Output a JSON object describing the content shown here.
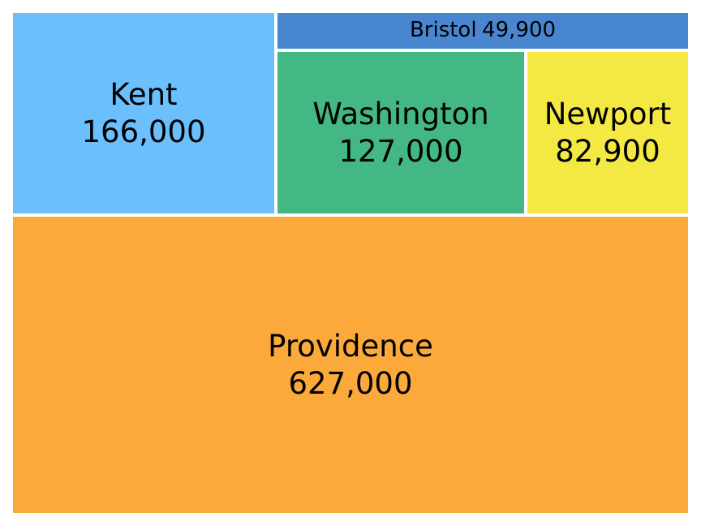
{
  "chart_data": {
    "type": "treemap",
    "title": "",
    "items": [
      {
        "label": "Providence",
        "value": 627000,
        "value_text": "627,000",
        "color": "#fba93a"
      },
      {
        "label": "Kent",
        "value": 166000,
        "value_text": "166,000",
        "color": "#6bbffc"
      },
      {
        "label": "Washington",
        "value": 127000,
        "value_text": "127,000",
        "color": "#43b884"
      },
      {
        "label": "Newport",
        "value": 82900,
        "value_text": "82,900",
        "color": "#f4e942"
      },
      {
        "label": "Bristol",
        "value": 49900,
        "value_text": "49,900",
        "color": "#4886d0"
      }
    ]
  }
}
